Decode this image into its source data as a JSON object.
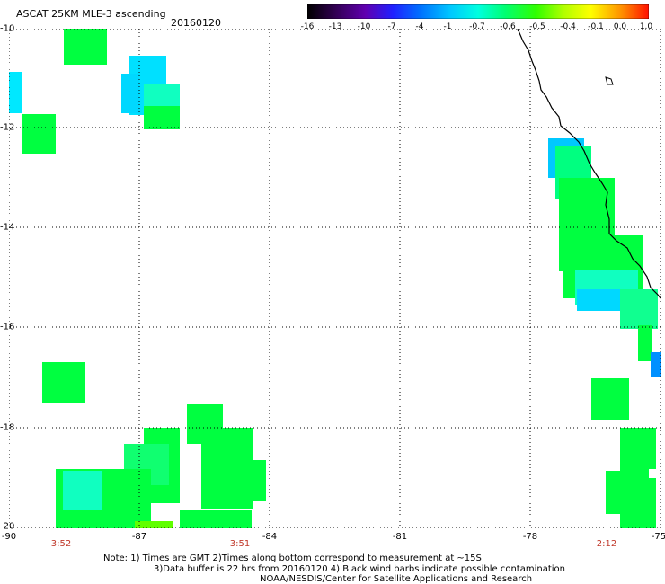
{
  "header": {
    "title": "ASCAT 25KM MLE-3 ascending",
    "date": "20160120"
  },
  "colorbar": {
    "labels": [
      "-16",
      "-13",
      "-10",
      "-7",
      "-4",
      "-1",
      "-0.7",
      "-0.6",
      "-0.5",
      "-0.4",
      "-0.1",
      "0.0",
      "1.0"
    ],
    "colors": [
      "#000000",
      "#3a0060",
      "#6a00b8",
      "#2020ff",
      "#0070ff",
      "#00c8ff",
      "#00ffe0",
      "#00ff80",
      "#20ff00",
      "#b0ff00",
      "#ffff00",
      "#ff9000",
      "#ff2000"
    ]
  },
  "axes": {
    "lat_labels": [
      "-10",
      "-12",
      "-14",
      "-16",
      "-18",
      "-20"
    ],
    "lon_labels": [
      "-90",
      "-87",
      "-84",
      "-81",
      "-78",
      "-75"
    ],
    "grid": true
  },
  "pass_times": [
    "3:52",
    "3:51",
    "2:12"
  ],
  "notes": {
    "line1": "Note: 1) Times are GMT 2)Times along bottom correspond to measurement at ~15S",
    "line2": "3)Data buffer is 22 hrs from 20160120 4) Black wind barbs indicate possible contamination",
    "line3": "NOAA/NESDIS/Center for Satellite Applications and Research"
  },
  "colors": {
    "green": "#00ff40",
    "cyan": "#00e0ff",
    "aqua": "#10ffc0",
    "lime": "#60ff00",
    "blue": "#0090ff",
    "time_text": "#c0392b"
  }
}
